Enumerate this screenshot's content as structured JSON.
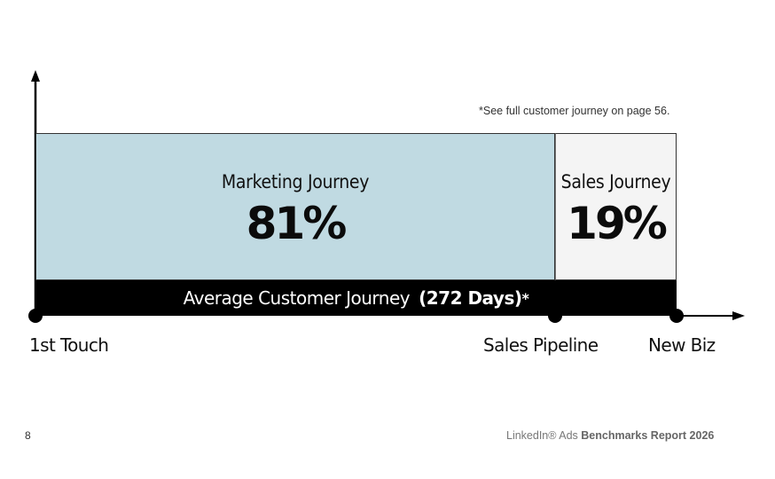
{
  "note": "*See full customer journey on page 56.",
  "marketing": {
    "label": "Marketing Journey",
    "value": "81%",
    "share": 81,
    "color": "#c0dae2"
  },
  "sales": {
    "label": "Sales Journey",
    "value": "19%",
    "share": 19,
    "color": "#f4f4f4"
  },
  "average_bar": {
    "prefix": "Average Customer Journey",
    "bold": "(272 Days)",
    "asterisk": "*"
  },
  "axis_points": {
    "start": "1st Touch",
    "middle": "Sales Pipeline",
    "end": "New Biz"
  },
  "footer": {
    "page_number": "8",
    "brand": "LinkedIn® Ads",
    "report": "Benchmarks Report 2026"
  }
}
